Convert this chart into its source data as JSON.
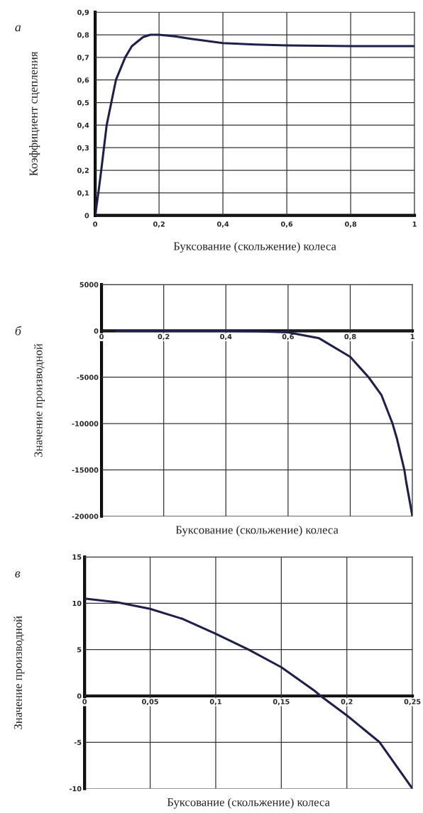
{
  "chart_data": [
    {
      "type": "line",
      "title": "а",
      "xlabel": "Буксование (скольжение) колеса",
      "ylabel": "Коэффициент сцепления",
      "grid": true,
      "xlim": [
        0,
        1
      ],
      "ylim": [
        0,
        0.9
      ],
      "xticks": [
        0,
        {
          "value": 0.2,
          "label": "0,2"
        },
        {
          "value": 0.4,
          "label": "0,4"
        },
        {
          "value": 0.6,
          "label": "0,6"
        },
        {
          "value": 0.8,
          "label": "0,8"
        },
        1
      ],
      "yticks": [
        0,
        {
          "value": 0.1,
          "label": "0,1"
        },
        {
          "value": 0.2,
          "label": "0,2"
        },
        {
          "value": 0.3,
          "label": "0,3"
        },
        {
          "value": 0.4,
          "label": "0,4"
        },
        {
          "value": 0.5,
          "label": "0,5"
        },
        {
          "value": 0.6,
          "label": "0,6"
        },
        {
          "value": 0.7,
          "label": "0,7"
        },
        {
          "value": 0.8,
          "label": "0,8"
        },
        {
          "value": 0.9,
          "label": "0,9"
        }
      ],
      "series": [
        {
          "color": "#1c1f4f",
          "x": [
            0,
            0.01,
            0.019,
            0.036,
            0.065,
            0.094,
            0.115,
            0.15,
            0.173,
            0.2,
            0.25,
            0.3,
            0.4,
            0.5,
            0.6,
            0.8,
            1
          ],
          "values": [
            0,
            0.1,
            0.2,
            0.4,
            0.6,
            0.7,
            0.75,
            0.79,
            0.8,
            0.8,
            0.793,
            0.782,
            0.763,
            0.757,
            0.753,
            0.75,
            0.75
          ]
        }
      ]
    },
    {
      "type": "line",
      "title": "б",
      "xlabel": "Буксование (скольжение) колеса",
      "ylabel": "Значение производной",
      "grid": true,
      "xlim": [
        0,
        1
      ],
      "ylim": [
        -20000,
        5000
      ],
      "xticks": [
        0,
        {
          "value": 0.2,
          "label": "0,2"
        },
        {
          "value": 0.4,
          "label": "0,4"
        },
        {
          "value": 0.6,
          "label": "0,6"
        },
        {
          "value": 0.8,
          "label": "0,8"
        },
        1
      ],
      "yticks": [
        -20000,
        -15000,
        -10000,
        -5000,
        0,
        5000
      ],
      "series": [
        {
          "color": "#1c1f4f",
          "x": [
            0.047,
            0.2,
            0.4,
            0.5,
            0.6,
            0.7,
            0.8,
            0.859,
            0.9,
            0.936,
            0.95,
            0.974,
            0.98,
            1
          ],
          "values": [
            0,
            0,
            0,
            -50,
            -150,
            -800,
            -2800,
            -5000,
            -6900,
            -10000,
            -11600,
            -15000,
            -16300,
            -20000
          ]
        }
      ]
    },
    {
      "type": "line",
      "title": "в",
      "xlabel": "Буксование (скольжение) колеса",
      "ylabel": "Значение производной",
      "grid": true,
      "xlim": [
        0,
        0.25
      ],
      "ylim": [
        -10,
        15
      ],
      "xticks": [
        0,
        {
          "value": 0.05,
          "label": "0,05"
        },
        {
          "value": 0.1,
          "label": "0,1"
        },
        {
          "value": 0.15,
          "label": "0,15"
        },
        {
          "value": 0.2,
          "label": "0,2"
        },
        {
          "value": 0.25,
          "label": "0,25"
        }
      ],
      "yticks": [
        -10,
        -5,
        0,
        5,
        10,
        15
      ],
      "series": [
        {
          "color": "#1c1f4f",
          "x": [
            0,
            0.025,
            0.05,
            0.075,
            0.1,
            0.125,
            0.15,
            0.175,
            0.18,
            0.2,
            0.225,
            0.25
          ],
          "values": [
            10.5,
            10.1,
            9.4,
            8.3,
            6.7,
            5,
            3.1,
            0.6,
            0,
            -2.1,
            -5,
            -10
          ]
        }
      ]
    }
  ]
}
